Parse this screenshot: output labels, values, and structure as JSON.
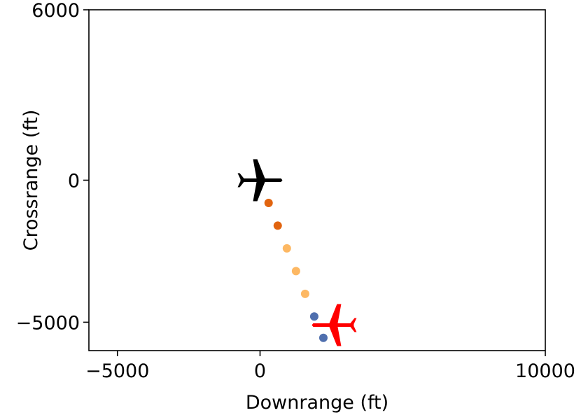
{
  "chart_data": {
    "type": "scatter",
    "title": "",
    "xlabel": "Downrange (ft)",
    "ylabel": "Crossrange (ft)",
    "xlim": [
      -6000,
      10000
    ],
    "ylim": [
      -6000,
      6000
    ],
    "xticks": [
      -5000,
      0,
      10000
    ],
    "xtick_labels": [
      "−5000",
      "0",
      "10000"
    ],
    "yticks": [
      -5000,
      0,
      6000
    ],
    "ytick_labels": [
      "−5000",
      "0",
      "6000"
    ],
    "grid": false,
    "series": [
      {
        "values": [
          {
            "x": 300,
            "y": -800,
            "color": "#e1640f"
          },
          {
            "x": 620,
            "y": -1600,
            "color": "#e1640f"
          },
          {
            "x": 940,
            "y": -2400,
            "color": "#fdb863"
          },
          {
            "x": 1260,
            "y": -3200,
            "color": "#fdb863"
          },
          {
            "x": 1580,
            "y": -4000,
            "color": "#fdb863"
          },
          {
            "x": 1900,
            "y": -4800,
            "color": "#4f6fae"
          },
          {
            "x": 2220,
            "y": -5550,
            "color": "#4f6fae"
          }
        ]
      }
    ],
    "aircraft": [
      {
        "x": 0,
        "y": 0,
        "color": "#000000",
        "icon": "airplane-icon",
        "heading": "right"
      },
      {
        "x": 2600,
        "y": -5100,
        "color": "#ff0000",
        "icon": "airplane-icon",
        "heading": "left"
      }
    ]
  }
}
